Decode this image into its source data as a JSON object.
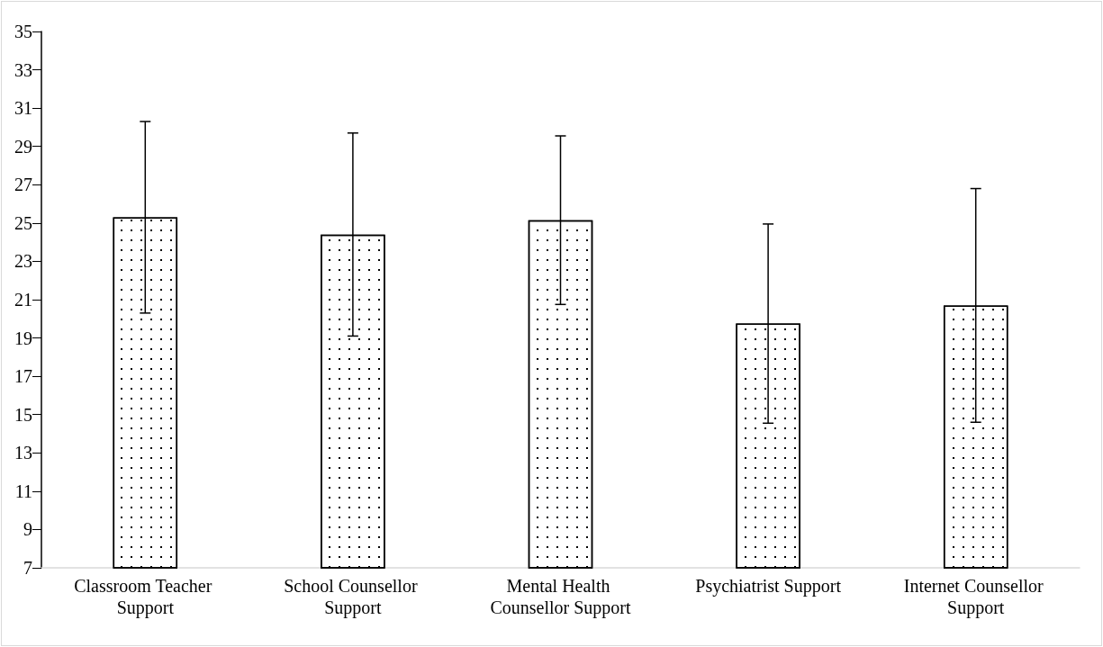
{
  "chart_data": {
    "type": "bar",
    "categories": [
      "Classroom Teacher Support",
      "School Counsellor Support",
      "Mental Health Counsellor Support",
      "Psychiatrist Support",
      "Internet Counsellor Support"
    ],
    "values": [
      25.3,
      24.4,
      25.15,
      19.75,
      20.7
    ],
    "errors": [
      5.0,
      5.3,
      4.4,
      5.2,
      6.1
    ],
    "color": "#ffffff",
    "ylim": [
      7,
      35
    ],
    "yticks": [
      7,
      9,
      11,
      13,
      15,
      17,
      19,
      21,
      23,
      25,
      27,
      29,
      31,
      33,
      35
    ],
    "grid": false
  }
}
